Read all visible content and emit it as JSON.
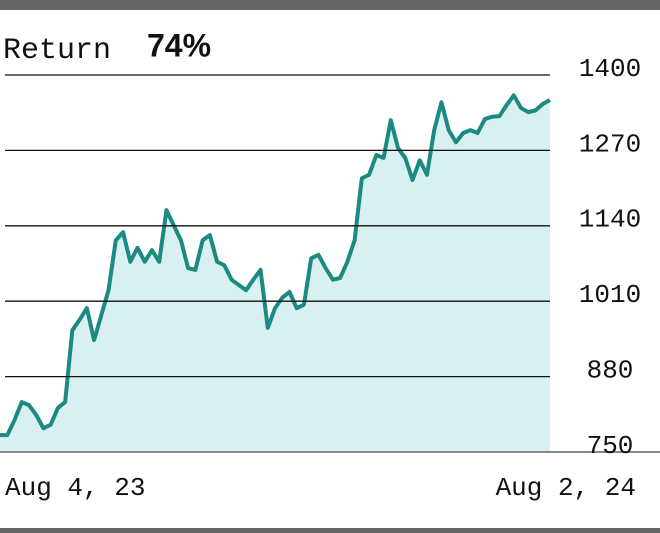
{
  "chart_data": {
    "type": "area",
    "title": "Return",
    "annotation": "74%",
    "categories": [
      "Aug 4, 23",
      null,
      null,
      null,
      null,
      null,
      null,
      null,
      null,
      null,
      null,
      null,
      null,
      null,
      null,
      null,
      null,
      null,
      null,
      null,
      null,
      null,
      null,
      null,
      null,
      null,
      null,
      null,
      null,
      null,
      null,
      null,
      null,
      null,
      null,
      null,
      null,
      null,
      null,
      null,
      null,
      null,
      null,
      null,
      null,
      null,
      null,
      null,
      null,
      null,
      null,
      null,
      null,
      null,
      null,
      null,
      null,
      null,
      null,
      null,
      null,
      null,
      null,
      null,
      null,
      null,
      null,
      null,
      null,
      null,
      null,
      null,
      null,
      null,
      null,
      null,
      "Aug 2, 24"
    ],
    "values": [
      779,
      779,
      805,
      836,
      831,
      814,
      791,
      797,
      826,
      836,
      960,
      978,
      998,
      943,
      986,
      1029,
      1115,
      1129,
      1078,
      1102,
      1078,
      1098,
      1078,
      1167,
      1141,
      1115,
      1067,
      1064,
      1115,
      1124,
      1078,
      1072,
      1047,
      1038,
      1029,
      1047,
      1064,
      964,
      998,
      1016,
      1026,
      998,
      1004,
      1084,
      1090,
      1067,
      1047,
      1050,
      1078,
      1115,
      1222,
      1228,
      1262,
      1257,
      1322,
      1274,
      1257,
      1219,
      1253,
      1228,
      1305,
      1353,
      1305,
      1284,
      1300,
      1305,
      1300,
      1324,
      1328,
      1329,
      1348,
      1365,
      1343,
      1336,
      1339,
      1350,
      1357
    ],
    "color": "#1b8a82",
    "fill": "#d9f0f0",
    "ylim": [
      750,
      1400
    ],
    "yticks": [
      750,
      880,
      1010,
      1140,
      1270,
      1400
    ],
    "grid": true
  }
}
